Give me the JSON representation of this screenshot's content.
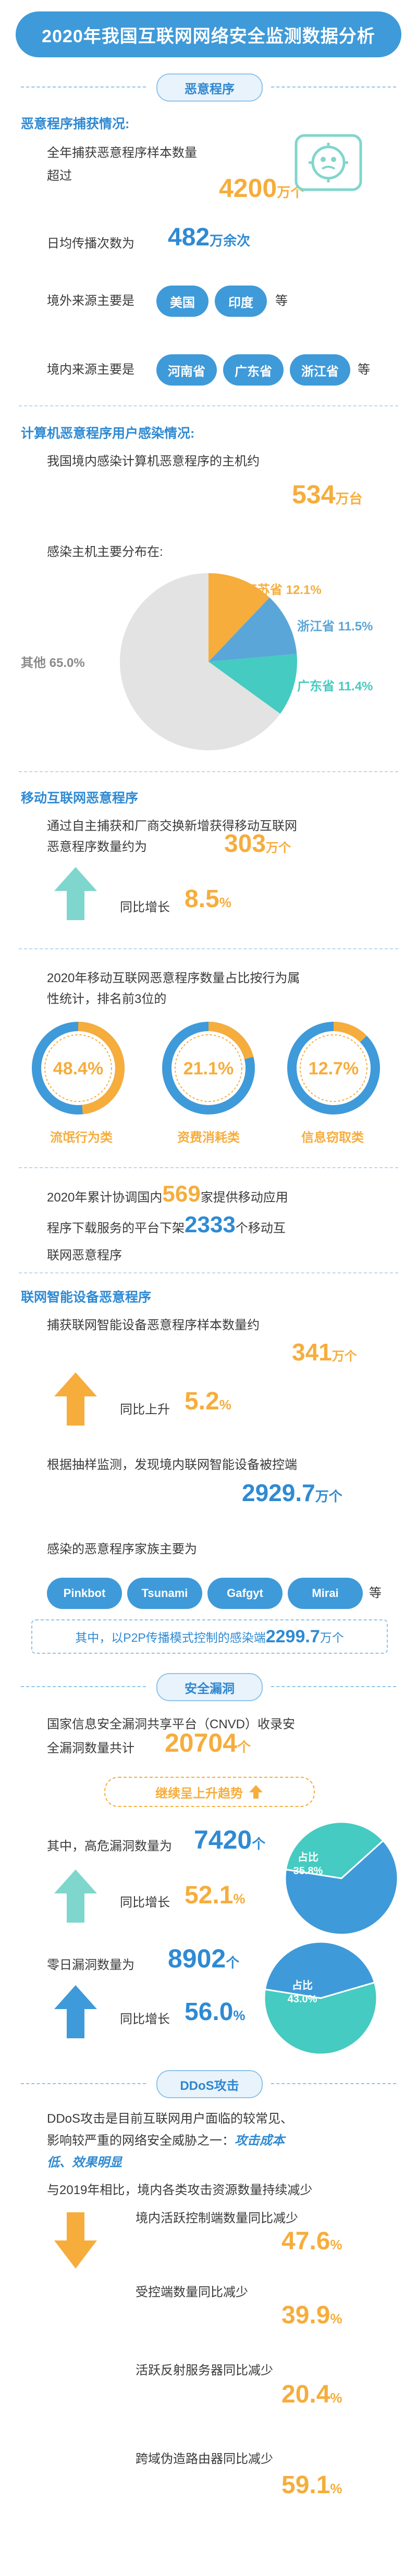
{
  "title": "2020年我国互联网网络安全监测数据分析",
  "sections": {
    "malware": "恶意程序",
    "vuln": "安全漏洞",
    "ddos": "DDoS攻击"
  },
  "malware_capture": {
    "heading": "恶意程序捕获情况:",
    "line1": "全年捕获恶意程序样本数量",
    "line2": "超过",
    "count": "4200",
    "count_unit": "万个",
    "daily_prefix": "日均传播次数为",
    "daily_value": "482",
    "daily_unit": "万余次",
    "overseas_prefix": "境外来源主要是",
    "overseas": [
      "美国",
      "印度"
    ],
    "overseas_suffix": "等",
    "domestic_prefix": "境内来源主要是",
    "domestic": [
      "河南省",
      "广东省",
      "浙江省"
    ],
    "domestic_suffix": "等"
  },
  "pc_infection": {
    "heading": "计算机恶意程序用户感染情况:",
    "line1": "我国境内感染计算机恶意程序的主机约",
    "value": "534",
    "unit": "万台",
    "dist_label": "感染主机主要分布在:",
    "labels": {
      "jiangsu": "江苏省 12.1%",
      "zhejiang": "浙江省 11.5%",
      "guangdong": "广东省 11.4%",
      "other": "其他 65.0%"
    }
  },
  "chart_data": [
    {
      "type": "pie",
      "categories": [
        "江苏省",
        "浙江省",
        "广东省",
        "其他"
      ],
      "values": [
        12.1,
        11.5,
        11.4,
        65.0
      ],
      "colors": [
        "#f6ad3c",
        "#5aa6d8",
        "#45cbc1",
        "#e3e3e3"
      ]
    },
    {
      "type": "pie",
      "categories": [
        "流氓行为类",
        "其他"
      ],
      "values": [
        48.4,
        51.6
      ]
    },
    {
      "type": "pie",
      "categories": [
        "资费消耗类",
        "其他"
      ],
      "values": [
        21.1,
        78.9
      ]
    },
    {
      "type": "pie",
      "categories": [
        "信息窃取类",
        "其他"
      ],
      "values": [
        12.7,
        87.3
      ]
    },
    {
      "type": "pie",
      "categories": [
        "高危漏洞",
        "其他"
      ],
      "values": [
        35.8,
        64.2
      ]
    },
    {
      "type": "pie",
      "categories": [
        "零日漏洞",
        "其他"
      ],
      "values": [
        43.0,
        57.0
      ]
    }
  ],
  "mobile": {
    "heading": "移动互联网恶意程序",
    "line1": "通过自主捕获和厂商交换新增获得移动互联网",
    "line2": "恶意程序数量约为",
    "value": "303",
    "unit": "万个",
    "yoy_label": "同比增长",
    "yoy_value": "8.5",
    "yoy_unit": "%",
    "stat_line1": "2020年移动互联网恶意程序数量占比按行为属",
    "stat_line2": "性统计，排名前3位的",
    "rings": [
      {
        "pct": "48.4%",
        "label": "流氓行为类"
      },
      {
        "pct": "21.1%",
        "label": "资费消耗类"
      },
      {
        "pct": "12.7%",
        "label": "信息窃取类"
      }
    ],
    "coord_p1": "2020年累计协调国内",
    "coord_v1": "569",
    "coord_p2": "家提供移动应用",
    "coord_p3": "程序下载服务的平台下架",
    "coord_v2": "2333",
    "coord_p4": "个移动互",
    "coord_p5": "联网恶意程序"
  },
  "iot": {
    "heading": "联网智能设备恶意程序",
    "line1": "捕获联网智能设备恶意程序样本数量约",
    "value": "341",
    "unit": "万个",
    "yoy_label": "同比上升",
    "yoy_value": "5.2",
    "yoy_unit": "%",
    "sample_line": "根据抽样监测，发现境内联网智能设备被控端",
    "controlled": "2929.7",
    "controlled_unit": "万个",
    "family_label": "感染的恶意程序家族主要为",
    "families": [
      "Pinkbot",
      "Tsunami",
      "Gafgyt",
      "Mirai"
    ],
    "family_suffix": "等",
    "p2p_prefix": "其中，以P2P传播模式控制的感染端",
    "p2p_value": "2299.7",
    "p2p_unit": "万个"
  },
  "vuln": {
    "line1": "国家信息安全漏洞共享平台（CNVD）收录安",
    "line2": "全漏洞数量共计",
    "total": "20704",
    "total_unit": "个",
    "trend": "继续呈上升趋势",
    "high_label": "其中，高危漏洞数量为",
    "high_value": "7420",
    "high_unit": "个",
    "high_yoy_label": "同比增长",
    "high_yoy": "52.1",
    "high_share_label": "占比",
    "high_share": "35.8%",
    "zero_label": "零日漏洞数量为",
    "zero_value": "8902",
    "zero_unit": "个",
    "zero_yoy_label": "同比增长",
    "zero_yoy": "56.0",
    "zero_share_label": "占比",
    "zero_share": "43.0%",
    "pct": "%"
  },
  "ddos": {
    "line1": "DDoS攻击是目前互联网用户面临的较常见、",
    "line2a": "影响较严重的网络安全威胁之一：",
    "line2b": "攻击成本",
    "line3": "低、效果明显",
    "compare": "与2019年相比，境内各类攻击资源数量持续减少",
    "items": [
      {
        "label": "境内活跃控制端数量同比减少",
        "value": "47.6"
      },
      {
        "label": "受控端数量同比减少",
        "value": "39.9"
      },
      {
        "label": "活跃反射服务器同比减少",
        "value": "20.4"
      },
      {
        "label": "跨域伪造路由器同比减少",
        "value": "59.1"
      }
    ],
    "pct": "%"
  },
  "colors": {
    "primary_blue": "#3f9ad9",
    "orange": "#f6ad3c",
    "teal": "#45cbc1",
    "light_blue": "#5aa6d8",
    "grey": "#e3e3e3"
  }
}
